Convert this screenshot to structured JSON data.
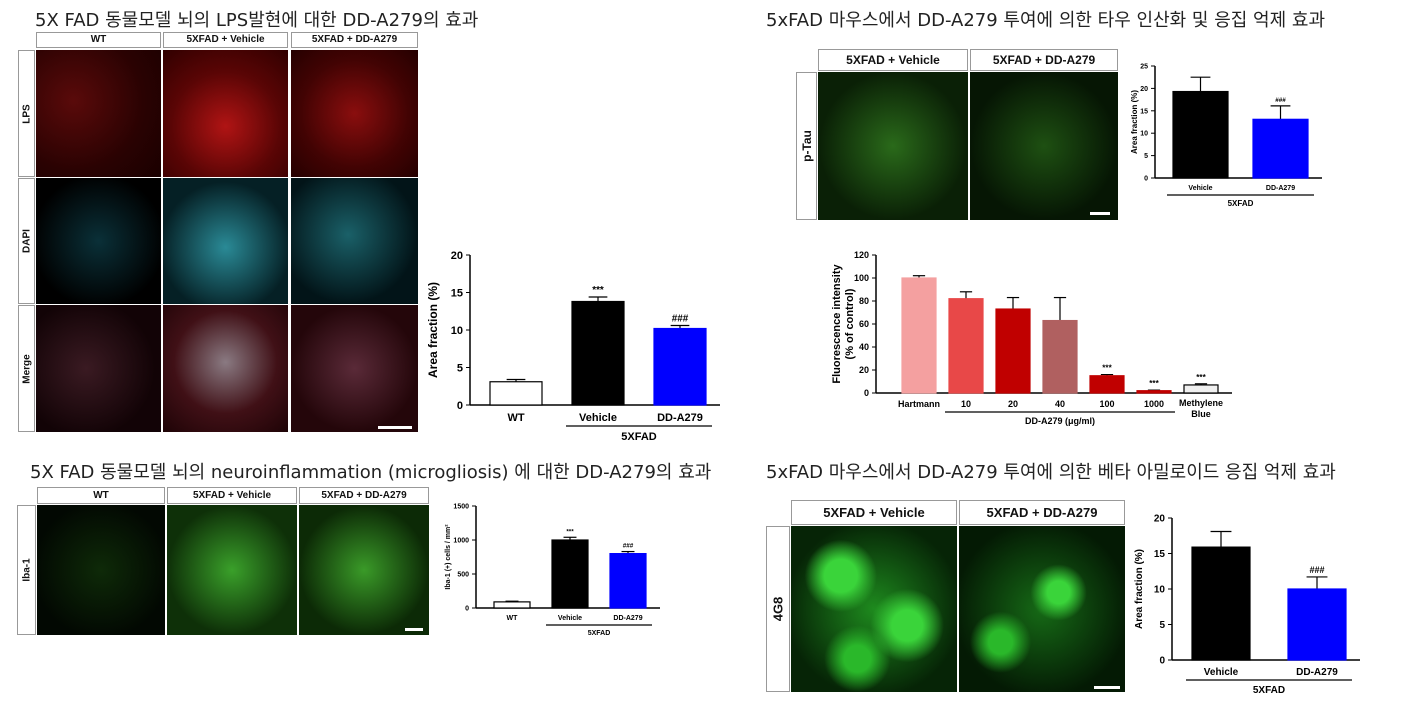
{
  "titles": {
    "p1": "5X FAD 동물모델 뇌의 LPS발현에 대한 DD-A279의 효과",
    "p2": "5xFAD 마우스에서 DD-A279 투여에 의한 타우 인산화 및 응집 억제 효과",
    "p3": "5X FAD 동물모델 뇌의 neuroinflammation (microgliosis) 에 대한 DD-A279의 효과",
    "p4": "5xFAD 마우스에서 DD-A279 투여에 의한 베타 아밀로이드 응집 억제 효과"
  },
  "labels": {
    "wt": "WT",
    "vehicle_hdr": "5XFAD + Vehicle",
    "dd_hdr": "5XFAD + DD-A279",
    "lps": "LPS",
    "dapi": "DAPI",
    "merge": "Merge",
    "ptau": "p-Tau",
    "iba1": "Iba-1",
    "a4g8": "4G8"
  },
  "colors": {
    "red": "#e01010",
    "cyan": "#39c8d8",
    "green": "#2ed02e",
    "blue": "#0000ff",
    "black": "#000000"
  },
  "chart_data": [
    {
      "id": "lps",
      "type": "bar",
      "categories": [
        "WT",
        "Vehicle",
        "DD-A279"
      ],
      "values": [
        3.1,
        13.8,
        10.2
      ],
      "errors": [
        0.3,
        0.6,
        0.4
      ],
      "annotations": [
        "",
        "***",
        "###"
      ],
      "colors": [
        "#ffffff",
        "#000000",
        "#0000ff"
      ],
      "ylabel": "Area fraction (%)",
      "ylim": [
        0,
        20
      ],
      "yticks": [
        0,
        5,
        10,
        15,
        20
      ],
      "group_label": "5XFAD"
    },
    {
      "id": "ptau",
      "type": "bar",
      "categories": [
        "Vehicle",
        "DD-A279"
      ],
      "values": [
        19.3,
        13.1
      ],
      "errors": [
        3.2,
        3.0
      ],
      "annotations": [
        "",
        "###"
      ],
      "colors": [
        "#000000",
        "#0000ff"
      ],
      "ylabel": "Area fraction (%)",
      "ylim": [
        0,
        25
      ],
      "yticks": [
        0,
        5,
        10,
        15,
        20,
        25
      ],
      "group_label": "5XFAD"
    },
    {
      "id": "fluor",
      "type": "bar",
      "categories": [
        "Hartmann",
        "10",
        "20",
        "40",
        "100",
        "1000",
        "Methylene Blue"
      ],
      "values": [
        100,
        82,
        73,
        63,
        15,
        2,
        7
      ],
      "errors": [
        2,
        6,
        10,
        20,
        1,
        0.5,
        1
      ],
      "annotations": [
        "",
        "",
        "",
        "",
        "***",
        "***",
        "***"
      ],
      "colors": [
        "#f4a0a0",
        "#e84848",
        "#c00000",
        "#b06060",
        "#c00000",
        "#c00000",
        "#f0f0f0"
      ],
      "ylabel": "Fluorescence intensity (% of control)",
      "ylim": [
        0,
        120
      ],
      "yticks": [
        0,
        20,
        40,
        60,
        80,
        100,
        120
      ],
      "group_label": "DD-A279 (μg/ml)"
    },
    {
      "id": "iba",
      "type": "bar",
      "categories": [
        "WT",
        "Vehicle",
        "DD-A279"
      ],
      "values": [
        90,
        1000,
        800
      ],
      "errors": [
        10,
        40,
        30
      ],
      "annotations": [
        "",
        "***",
        "###"
      ],
      "colors": [
        "#ffffff",
        "#000000",
        "#0000ff"
      ],
      "ylabel": "Iba-1 (+) cells / mm²",
      "ylim": [
        0,
        1500
      ],
      "yticks": [
        0,
        500,
        1000,
        1500
      ],
      "group_label": "5XFAD"
    },
    {
      "id": "4g8",
      "type": "bar",
      "categories": [
        "Vehicle",
        "DD-A279"
      ],
      "values": [
        15.9,
        10.0
      ],
      "errors": [
        2.2,
        1.7
      ],
      "annotations": [
        "",
        "###"
      ],
      "colors": [
        "#000000",
        "#0000ff"
      ],
      "ylabel": "Area fraction (%)",
      "ylim": [
        0,
        20
      ],
      "yticks": [
        0,
        5,
        10,
        15,
        20
      ],
      "group_label": "5XFAD"
    }
  ]
}
